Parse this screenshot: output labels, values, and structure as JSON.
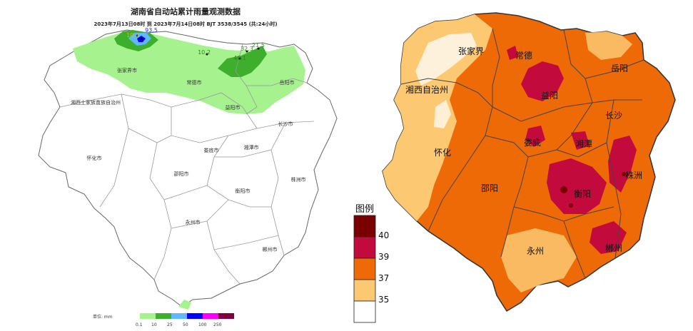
{
  "left_map": {
    "title": "湖南省自动站累计雨量观测数据",
    "subtitle": "2023年7月13日08时 到 2023年7月14日08时 BJT 3538/3545 (共:24小时)",
    "unit_label": "单位: mm",
    "scale_ticks": [
      "0.1",
      "10",
      "25",
      "50",
      "100",
      "250"
    ],
    "scale_colors": [
      "#a6f28f",
      "#3daf2c",
      "#61b8ff",
      "#0000fe",
      "#fa00fa",
      "#800040"
    ],
    "cities": [
      "张家界市",
      "常德市",
      "岳阳市",
      "湘西土家族苗族自治州",
      "益阳市",
      "长沙市",
      "怀化市",
      "娄底市",
      "湘潭市",
      "邵阳市",
      "株洲市",
      "衡阳市",
      "永州市",
      "郴州市"
    ],
    "values": [
      "93.5",
      "10.4",
      "10.2",
      "32.3",
      "21.5",
      "48.1"
    ]
  },
  "right_map": {
    "legend_title": "图例",
    "legend_levels": [
      {
        "label": "40",
        "color": "#7a0000"
      },
      {
        "label": "39",
        "color": "#c20a3c"
      },
      {
        "label": "37",
        "color": "#ee6a06"
      },
      {
        "label": "35",
        "color": "#fcc872"
      },
      {
        "label": "",
        "color": "#ffffff"
      }
    ],
    "cities": [
      "张家界",
      "常德",
      "岳阳",
      "湘西自治州",
      "益阳",
      "长沙",
      "娄底",
      "怀化",
      "湘潭",
      "株洲",
      "邵阳",
      "衡阳",
      "永州",
      "郴州"
    ]
  }
}
